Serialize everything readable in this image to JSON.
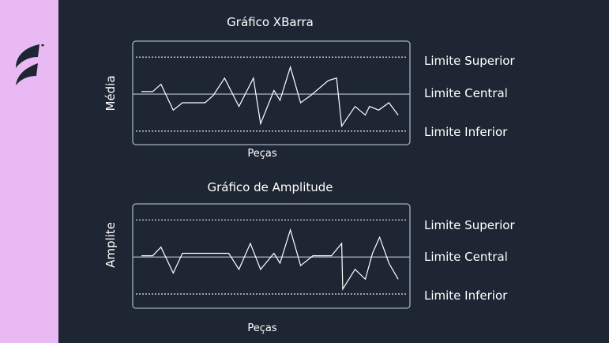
{
  "colors": {
    "background": "#1e2633",
    "sidebar": "#e8b9f3",
    "line": "#ffffff",
    "frame": "#9fb0bf"
  },
  "logo_icon": "brand-logo",
  "chart_data": [
    {
      "type": "line",
      "title": "Gráfico XBarra",
      "xlabel": "Peças",
      "ylabel": "Média",
      "xlim": [
        0.15,
        27.15
      ],
      "ylim": [
        -4.1,
        4.3
      ],
      "reference_lines": [
        {
          "label": "Limite Superior",
          "y": 3,
          "style": "dotted"
        },
        {
          "label": "Limite Central",
          "y": 0,
          "style": "solid"
        },
        {
          "label": "Limite Inferior",
          "y": -3,
          "style": "dotted"
        }
      ],
      "x": [
        1,
        2.1,
        2.9,
        4.1,
        5,
        7.2,
        8,
        9.1,
        10.5,
        11.9,
        12.6,
        13.9,
        14.5,
        15.5,
        16.5,
        17.5,
        19.2,
        20,
        20.5,
        21.8,
        22.8,
        23.2,
        24.1,
        25.1,
        26
      ],
      "values": [
        0.2,
        0.2,
        0.8,
        -1.3,
        -0.7,
        -0.7,
        -0.1,
        1.3,
        -1.0,
        1.3,
        -2.4,
        0.3,
        -0.5,
        2.2,
        -0.7,
        -0.1,
        1.1,
        1.3,
        -2.6,
        -1.0,
        -1.7,
        -1.0,
        -1.3,
        -0.7,
        -1.7
      ]
    },
    {
      "type": "line",
      "title": "Gráfico de Amplitude",
      "xlabel": "Peças",
      "ylabel": "Amplite",
      "xlim": [
        0.15,
        27.15
      ],
      "ylim": [
        -4.15,
        4.3
      ],
      "reference_lines": [
        {
          "label": "Limite Superior",
          "y": 3,
          "style": "dotted"
        },
        {
          "label": "Limite Central",
          "y": 0,
          "style": "solid"
        },
        {
          "label": "Limite Inferior",
          "y": -3,
          "style": "dotted"
        }
      ],
      "x": [
        1,
        2.1,
        2.9,
        4.1,
        5,
        9.5,
        10.5,
        11.6,
        12.6,
        13.9,
        14.5,
        15.5,
        16.5,
        17.7,
        19.5,
        20.5,
        20.6,
        21.8,
        22.8,
        23.5,
        24.2,
        25.1,
        26
      ],
      "values": [
        0.1,
        0.1,
        0.8,
        -1.3,
        0.3,
        0.3,
        -1.0,
        1.1,
        -1.0,
        0.3,
        -0.5,
        2.2,
        -0.7,
        0.1,
        0.1,
        1.1,
        -2.6,
        -1.0,
        -1.8,
        0.3,
        1.6,
        -0.5,
        -1.8
      ]
    }
  ]
}
